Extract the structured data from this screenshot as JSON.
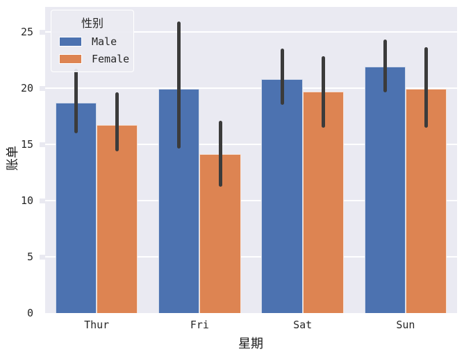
{
  "figure": {
    "background": "#ffffff",
    "plot_background": "#eaeaf2",
    "grid_color": "#ffffff",
    "text_color": "#262626"
  },
  "chart_data": {
    "type": "bar",
    "title": "",
    "xlabel": "星期",
    "ylabel": "账单",
    "categories": [
      "Thur",
      "Fri",
      "Sat",
      "Sun"
    ],
    "series": [
      {
        "name": "Male",
        "color": "#4c72b0",
        "values": [
          18.7,
          19.9,
          20.8,
          21.9
        ],
        "ci_low": [
          16.0,
          14.6,
          18.5,
          19.6
        ],
        "ci_high": [
          21.7,
          25.9,
          23.5,
          24.3
        ]
      },
      {
        "name": "Female",
        "color": "#dd8452",
        "values": [
          16.7,
          14.1,
          19.7,
          19.9
        ],
        "ci_low": [
          14.4,
          11.2,
          16.5,
          16.5
        ],
        "ci_high": [
          19.6,
          17.1,
          22.8,
          23.6
        ]
      }
    ],
    "ylim": [
      0,
      27.2
    ],
    "yticks": [
      0,
      5,
      10,
      15,
      20,
      25
    ],
    "bar_group_width_frac": 0.8,
    "error_bar_color": "#3b3b3b",
    "grid": true,
    "legend": {
      "title": "性别",
      "position": "upper left"
    }
  }
}
